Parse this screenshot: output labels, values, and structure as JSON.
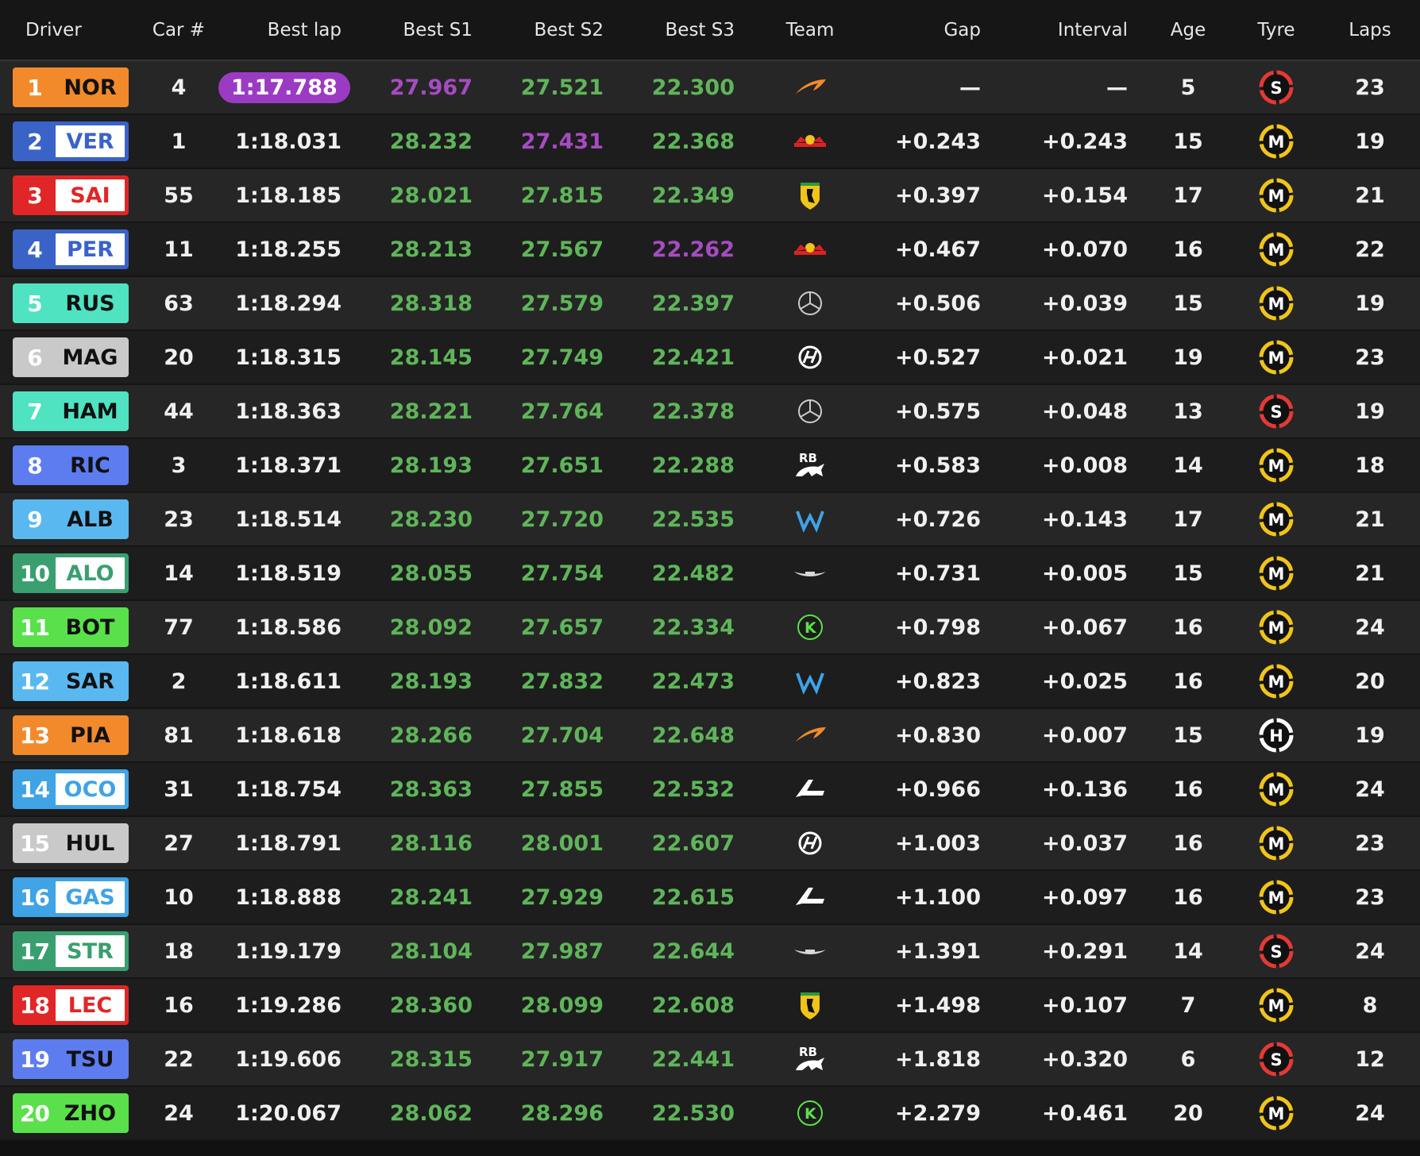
{
  "headers": {
    "driver": "Driver",
    "car": "Car #",
    "best_lap": "Best lap",
    "s1": "Best S1",
    "s2": "Best S2",
    "s3": "Best S3",
    "team": "Team",
    "gap": "Gap",
    "interval": "Interval",
    "age": "Age",
    "tyre": "Tyre",
    "laps": "Laps"
  },
  "colors": {
    "sector_green": "#5fb55a",
    "sector_purple": "#a64bc2",
    "fastest_pill": "#9b3bc4",
    "tyre_soft": "#e53935",
    "tyre_medium": "#f0c419",
    "tyre_hard": "#ffffff"
  },
  "rows": [
    {
      "pos": "1",
      "code": "NOR",
      "color": "#f28a2b",
      "text": "#111111",
      "car": "4",
      "best": "1:17.788",
      "best_fastest": true,
      "s1": "27.967",
      "s1_purple": true,
      "s2": "27.521",
      "s2_purple": false,
      "s3": "22.300",
      "s3_purple": false,
      "team": "mclaren-icon",
      "gap": "—",
      "interval": "—",
      "age": "5",
      "tyre": "S",
      "laps": "23"
    },
    {
      "pos": "2",
      "code": "VER",
      "color": "#3a63c8",
      "text": "#3a63c8",
      "car": "1",
      "best": "1:18.031",
      "best_fastest": false,
      "s1": "28.232",
      "s1_purple": false,
      "s2": "27.431",
      "s2_purple": true,
      "s3": "22.368",
      "s3_purple": false,
      "team": "red-bull-icon",
      "gap": "+0.243",
      "interval": "+0.243",
      "age": "15",
      "tyre": "M",
      "laps": "19"
    },
    {
      "pos": "3",
      "code": "SAI",
      "color": "#e02626",
      "text": "#e02626",
      "car": "55",
      "best": "1:18.185",
      "best_fastest": false,
      "s1": "28.021",
      "s1_purple": false,
      "s2": "27.815",
      "s2_purple": false,
      "s3": "22.349",
      "s3_purple": false,
      "team": "ferrari-icon",
      "gap": "+0.397",
      "interval": "+0.154",
      "age": "17",
      "tyre": "M",
      "laps": "21"
    },
    {
      "pos": "4",
      "code": "PER",
      "color": "#3a63c8",
      "text": "#3a63c8",
      "car": "11",
      "best": "1:18.255",
      "best_fastest": false,
      "s1": "28.213",
      "s1_purple": false,
      "s2": "27.567",
      "s2_purple": false,
      "s3": "22.262",
      "s3_purple": true,
      "team": "red-bull-icon",
      "gap": "+0.467",
      "interval": "+0.070",
      "age": "16",
      "tyre": "M",
      "laps": "22"
    },
    {
      "pos": "5",
      "code": "RUS",
      "color": "#4fe3c1",
      "text": "#111111",
      "car": "63",
      "best": "1:18.294",
      "best_fastest": false,
      "s1": "28.318",
      "s1_purple": false,
      "s2": "27.579",
      "s2_purple": false,
      "s3": "22.397",
      "s3_purple": false,
      "team": "mercedes-icon",
      "gap": "+0.506",
      "interval": "+0.039",
      "age": "15",
      "tyre": "M",
      "laps": "19"
    },
    {
      "pos": "6",
      "code": "MAG",
      "color": "#c9c9c9",
      "text": "#111111",
      "car": "20",
      "best": "1:18.315",
      "best_fastest": false,
      "s1": "28.145",
      "s1_purple": false,
      "s2": "27.749",
      "s2_purple": false,
      "s3": "22.421",
      "s3_purple": false,
      "team": "haas-icon",
      "gap": "+0.527",
      "interval": "+0.021",
      "age": "19",
      "tyre": "M",
      "laps": "23"
    },
    {
      "pos": "7",
      "code": "HAM",
      "color": "#4fe3c1",
      "text": "#111111",
      "car": "44",
      "best": "1:18.363",
      "best_fastest": false,
      "s1": "28.221",
      "s1_purple": false,
      "s2": "27.764",
      "s2_purple": false,
      "s3": "22.378",
      "s3_purple": false,
      "team": "mercedes-icon",
      "gap": "+0.575",
      "interval": "+0.048",
      "age": "13",
      "tyre": "S",
      "laps": "19"
    },
    {
      "pos": "8",
      "code": "RIC",
      "color": "#5d7cf0",
      "text": "#111111",
      "car": "3",
      "best": "1:18.371",
      "best_fastest": false,
      "s1": "28.193",
      "s1_purple": false,
      "s2": "27.651",
      "s2_purple": false,
      "s3": "22.288",
      "s3_purple": false,
      "team": "rb-icon",
      "gap": "+0.583",
      "interval": "+0.008",
      "age": "14",
      "tyre": "M",
      "laps": "18"
    },
    {
      "pos": "9",
      "code": "ALB",
      "color": "#5ab8f0",
      "text": "#111111",
      "car": "23",
      "best": "1:18.514",
      "best_fastest": false,
      "s1": "28.230",
      "s1_purple": false,
      "s2": "27.720",
      "s2_purple": false,
      "s3": "22.535",
      "s3_purple": false,
      "team": "williams-icon",
      "gap": "+0.726",
      "interval": "+0.143",
      "age": "17",
      "tyre": "M",
      "laps": "21"
    },
    {
      "pos": "10",
      "code": "ALO",
      "color": "#3a9f6f",
      "text": "#3a9f6f",
      "car": "14",
      "best": "1:18.519",
      "best_fastest": false,
      "s1": "28.055",
      "s1_purple": false,
      "s2": "27.754",
      "s2_purple": false,
      "s3": "22.482",
      "s3_purple": false,
      "team": "aston-martin-icon",
      "gap": "+0.731",
      "interval": "+0.005",
      "age": "15",
      "tyre": "M",
      "laps": "21"
    },
    {
      "pos": "11",
      "code": "BOT",
      "color": "#59e04a",
      "text": "#111111",
      "car": "77",
      "best": "1:18.586",
      "best_fastest": false,
      "s1": "28.092",
      "s1_purple": false,
      "s2": "27.657",
      "s2_purple": false,
      "s3": "22.334",
      "s3_purple": false,
      "team": "kick-sauber-icon",
      "gap": "+0.798",
      "interval": "+0.067",
      "age": "16",
      "tyre": "M",
      "laps": "24"
    },
    {
      "pos": "12",
      "code": "SAR",
      "color": "#5ab8f0",
      "text": "#111111",
      "car": "2",
      "best": "1:18.611",
      "best_fastest": false,
      "s1": "28.193",
      "s1_purple": false,
      "s2": "27.832",
      "s2_purple": false,
      "s3": "22.473",
      "s3_purple": false,
      "team": "williams-icon",
      "gap": "+0.823",
      "interval": "+0.025",
      "age": "16",
      "tyre": "M",
      "laps": "20"
    },
    {
      "pos": "13",
      "code": "PIA",
      "color": "#f28a2b",
      "text": "#111111",
      "car": "81",
      "best": "1:18.618",
      "best_fastest": false,
      "s1": "28.266",
      "s1_purple": false,
      "s2": "27.704",
      "s2_purple": false,
      "s3": "22.648",
      "s3_purple": false,
      "team": "mclaren-icon",
      "gap": "+0.830",
      "interval": "+0.007",
      "age": "15",
      "tyre": "H",
      "laps": "19"
    },
    {
      "pos": "14",
      "code": "OCO",
      "color": "#3fa3e6",
      "text": "#3fa3e6",
      "car": "31",
      "best": "1:18.754",
      "best_fastest": false,
      "s1": "28.363",
      "s1_purple": false,
      "s2": "27.855",
      "s2_purple": false,
      "s3": "22.532",
      "s3_purple": false,
      "team": "alpine-icon",
      "gap": "+0.966",
      "interval": "+0.136",
      "age": "16",
      "tyre": "M",
      "laps": "24"
    },
    {
      "pos": "15",
      "code": "HUL",
      "color": "#c9c9c9",
      "text": "#111111",
      "car": "27",
      "best": "1:18.791",
      "best_fastest": false,
      "s1": "28.116",
      "s1_purple": false,
      "s2": "28.001",
      "s2_purple": false,
      "s3": "22.607",
      "s3_purple": false,
      "team": "haas-icon",
      "gap": "+1.003",
      "interval": "+0.037",
      "age": "16",
      "tyre": "M",
      "laps": "23"
    },
    {
      "pos": "16",
      "code": "GAS",
      "color": "#3fa3e6",
      "text": "#3fa3e6",
      "car": "10",
      "best": "1:18.888",
      "best_fastest": false,
      "s1": "28.241",
      "s1_purple": false,
      "s2": "27.929",
      "s2_purple": false,
      "s3": "22.615",
      "s3_purple": false,
      "team": "alpine-icon",
      "gap": "+1.100",
      "interval": "+0.097",
      "age": "16",
      "tyre": "M",
      "laps": "23"
    },
    {
      "pos": "17",
      "code": "STR",
      "color": "#3a9f6f",
      "text": "#3a9f6f",
      "car": "18",
      "best": "1:19.179",
      "best_fastest": false,
      "s1": "28.104",
      "s1_purple": false,
      "s2": "27.987",
      "s2_purple": false,
      "s3": "22.644",
      "s3_purple": false,
      "team": "aston-martin-icon",
      "gap": "+1.391",
      "interval": "+0.291",
      "age": "14",
      "tyre": "S",
      "laps": "24"
    },
    {
      "pos": "18",
      "code": "LEC",
      "color": "#e02626",
      "text": "#e02626",
      "car": "16",
      "best": "1:19.286",
      "best_fastest": false,
      "s1": "28.360",
      "s1_purple": false,
      "s2": "28.099",
      "s2_purple": false,
      "s3": "22.608",
      "s3_purple": false,
      "team": "ferrari-icon",
      "gap": "+1.498",
      "interval": "+0.107",
      "age": "7",
      "tyre": "M",
      "laps": "8"
    },
    {
      "pos": "19",
      "code": "TSU",
      "color": "#5d7cf0",
      "text": "#111111",
      "car": "22",
      "best": "1:19.606",
      "best_fastest": false,
      "s1": "28.315",
      "s1_purple": false,
      "s2": "27.917",
      "s2_purple": false,
      "s3": "22.441",
      "s3_purple": false,
      "team": "rb-icon",
      "gap": "+1.818",
      "interval": "+0.320",
      "age": "6",
      "tyre": "S",
      "laps": "12"
    },
    {
      "pos": "20",
      "code": "ZHO",
      "color": "#59e04a",
      "text": "#111111",
      "car": "24",
      "best": "1:20.067",
      "best_fastest": false,
      "s1": "28.062",
      "s1_purple": false,
      "s2": "28.296",
      "s2_purple": false,
      "s3": "22.530",
      "s3_purple": false,
      "team": "kick-sauber-icon",
      "gap": "+2.279",
      "interval": "+0.461",
      "age": "20",
      "tyre": "M",
      "laps": "24"
    }
  ]
}
